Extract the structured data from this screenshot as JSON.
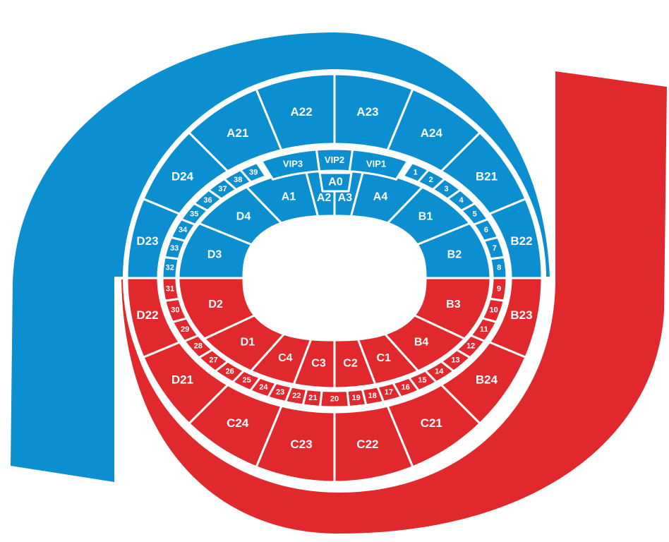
{
  "colors": {
    "upper": "#0b8fd1",
    "lower": "#e1292d",
    "background": "#ffffff"
  },
  "outer_sections": {
    "top": [
      "D23",
      "D24",
      "A21",
      "A22",
      "A23",
      "A24",
      "B21",
      "B22"
    ],
    "bottom": [
      "B23",
      "B24",
      "C21",
      "C22",
      "C23",
      "C24",
      "D21",
      "D22"
    ]
  },
  "inner_sections": {
    "top": [
      "D3",
      "D4",
      "A1",
      "A2",
      "A3",
      "A4",
      "B1",
      "B2"
    ],
    "bottom": [
      "B3",
      "B4",
      "C1",
      "C2",
      "C3",
      "C4",
      "D1",
      "D2"
    ],
    "center": "A0"
  },
  "vip_boxes": [
    "VIP3",
    "VIP2",
    "VIP1"
  ],
  "row_boxes": [
    "1",
    "2",
    "3",
    "4",
    "5",
    "6",
    "7",
    "8",
    "9",
    "10",
    "11",
    "12",
    "13",
    "14",
    "15",
    "16",
    "17",
    "18",
    "19",
    "20",
    "21",
    "22",
    "23",
    "24",
    "25",
    "26",
    "27",
    "28",
    "29",
    "30",
    "31",
    "32",
    "33",
    "34",
    "35",
    "36",
    "37",
    "38",
    "39"
  ]
}
